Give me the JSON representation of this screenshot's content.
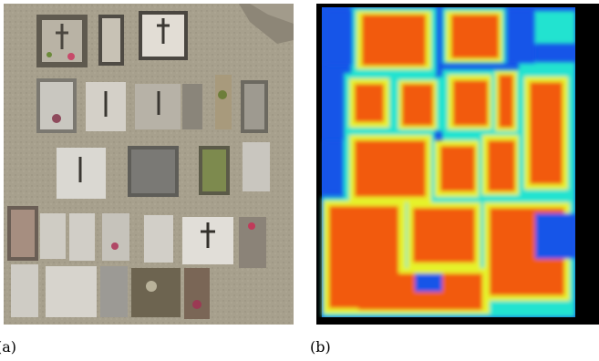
{
  "figure": {
    "panel_a": {
      "caption": "(a)"
    },
    "panel_b": {
      "caption": "(b)"
    }
  },
  "colors": {
    "ground": "#a8a08e",
    "tomb_light": "#d9d6cf",
    "tomb_dark": "#6b6a66",
    "heat_low": "#1655e8",
    "heat_mid": "#21e3d0",
    "heat_ring": "#e6f22b",
    "heat_high": "#f25a10",
    "frame": "#000000"
  }
}
